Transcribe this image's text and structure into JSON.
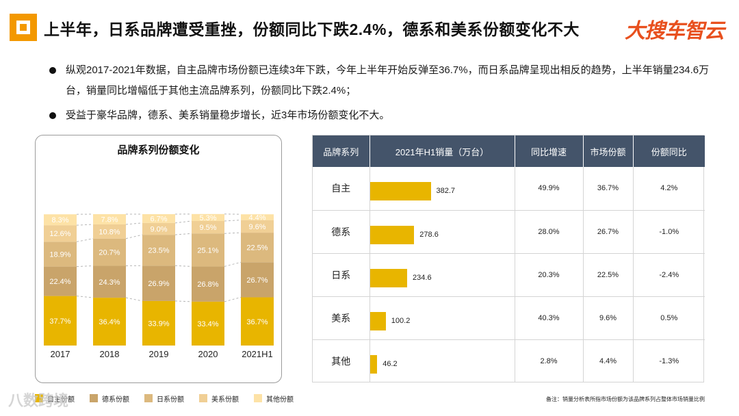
{
  "header": {
    "title": "上半年，日系品牌遭受重挫，份额同比下跌2.4%，德系和美系份额变化不大",
    "brand_text": "大搜车",
    "brand_accent": "智云"
  },
  "bullets": [
    "纵观2017-2021年数据，自主品牌市场份额已连续3年下跌，今年上半年开始反弹至36.7%，而日系品牌呈现出相反的趋势，上半年销量234.6万台，销量同比增幅低于其他主流品牌系列，份额同比下跌2.4%；",
    "受益于豪华品牌，德系、美系销量稳步增长，近3年市场份额变化不大。"
  ],
  "colors": {
    "brand_orange": "#f39800",
    "title_red": "#e8501e",
    "table_header": "#44546a",
    "bar_yellow": "#e8b500"
  },
  "chart_data": [
    {
      "type": "bar",
      "stacked": true,
      "percent": true,
      "title": "品牌系列份额变化",
      "categories": [
        "2017",
        "2018",
        "2019",
        "2020",
        "2021H1"
      ],
      "series": [
        {
          "name": "自主份额",
          "color": "#e8b500",
          "values": [
            37.7,
            36.4,
            33.9,
            33.4,
            36.7
          ]
        },
        {
          "name": "德系份额",
          "color": "#c9a46a",
          "values": [
            22.4,
            24.3,
            26.9,
            26.8,
            26.7
          ]
        },
        {
          "name": "日系份额",
          "color": "#dcb97e",
          "values": [
            18.9,
            20.7,
            23.5,
            25.1,
            22.5
          ]
        },
        {
          "name": "美系份额",
          "color": "#f0cf95",
          "values": [
            12.6,
            10.8,
            9.0,
            9.5,
            9.6
          ]
        },
        {
          "name": "其他份额",
          "color": "#fde2a6",
          "values": [
            8.3,
            7.8,
            6.7,
            5.3,
            4.4
          ]
        }
      ],
      "ylim": [
        0,
        100
      ],
      "connector_lines": true,
      "legend": "bottom"
    },
    {
      "type": "table",
      "columns": [
        "品牌系列",
        "2021年H1销量（万台）",
        "同比增速",
        "市场份额",
        "份额同比"
      ],
      "rows": [
        {
          "category": "自主",
          "sales": 382.7,
          "sales_label": "382.7",
          "growth": "49.9%",
          "share": "36.7%",
          "share_yoy": "4.2%"
        },
        {
          "category": "德系",
          "sales": 278.6,
          "sales_label": "278.6",
          "growth": "28.0%",
          "share": "26.7%",
          "share_yoy": "-1.0%"
        },
        {
          "category": "日系",
          "sales": 234.6,
          "sales_label": "234.6",
          "growth": "20.3%",
          "share": "22.5%",
          "share_yoy": "-2.4%"
        },
        {
          "category": "美系",
          "sales": 100.2,
          "sales_label": "100.2",
          "growth": "40.3%",
          "share": "9.6%",
          "share_yoy": "0.5%"
        },
        {
          "category": "其他",
          "sales": 46.2,
          "sales_label": "46.2",
          "growth": "2.8%",
          "share": "4.4%",
          "share_yoy": "-1.3%"
        }
      ],
      "sales_axis_max": 382.7
    }
  ],
  "note": "备注：销量分析表所指市场份额为该品牌系列占整体市场销量比例",
  "watermark": "八数跨境"
}
